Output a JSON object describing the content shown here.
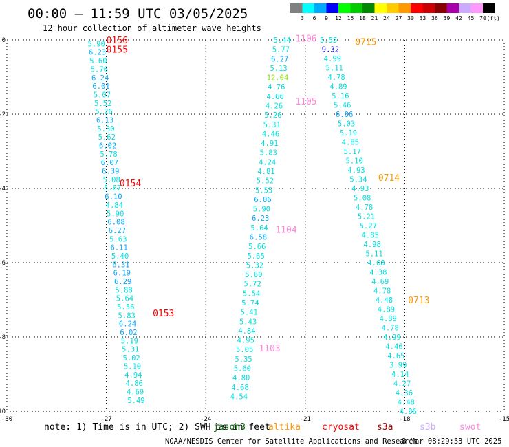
{
  "header": {
    "title": "00:00 — 11:59 UTC 03/05/2025",
    "subtitle": "12 hour collection of altimeter wave heights"
  },
  "legend": {
    "unit": "(ft)",
    "bins": [
      {
        "label": "3",
        "color": "#808080"
      },
      {
        "label": "6",
        "color": "#00ffff"
      },
      {
        "label": "9",
        "color": "#00aaff"
      },
      {
        "label": "12",
        "color": "#0000ff"
      },
      {
        "label": "15",
        "color": "#00ff00"
      },
      {
        "label": "18",
        "color": "#00cc00"
      },
      {
        "label": "21",
        "color": "#008800"
      },
      {
        "label": "24",
        "color": "#ffff00"
      },
      {
        "label": "27",
        "color": "#ffcc00"
      },
      {
        "label": "30",
        "color": "#ff9900"
      },
      {
        "label": "33",
        "color": "#ff0000"
      },
      {
        "label": "36",
        "color": "#cc0000"
      },
      {
        "label": "39",
        "color": "#880000"
      },
      {
        "label": "42",
        "color": "#aa00aa"
      },
      {
        "label": "45",
        "color": "#ccaaff"
      },
      {
        "label": "70",
        "color": "#ff99ff"
      },
      {
        "label": "",
        "color": "#000000"
      }
    ]
  },
  "footer": {
    "note": "note: 1) Time is in UTC; 2) SWH is in feet",
    "satellites": [
      {
        "name": "jason3",
        "color": "#006600"
      },
      {
        "name": "altika",
        "color": "#ff9900"
      },
      {
        "name": "cryosat",
        "color": "#ff0000"
      },
      {
        "name": "s3a",
        "color": "#aa0000"
      },
      {
        "name": "s3b",
        "color": "#ccaaff"
      },
      {
        "name": "swot",
        "color": "#ff88dd"
      }
    ],
    "credit": "NOAA/NESDIS Center for Satellite Applications and Research",
    "timestamp": "8 Mar 08:29:53 UTC 2025"
  },
  "chart_data": {
    "type": "scatter",
    "title": "00:00 — 11:59 UTC 03/05/2025",
    "subtitle": "12 hour collection of altimeter wave heights",
    "xlabel": "",
    "ylabel": "",
    "xlim": [
      -30,
      -15
    ],
    "ylim": [
      -10,
      0
    ],
    "xticks": [
      -30,
      -27,
      -24,
      -21,
      -18,
      -15
    ],
    "yticks": [
      0,
      -2,
      -4,
      -6,
      -8,
      -10
    ],
    "grid": true,
    "point_colors": {
      "cyan": "#00e0e0",
      "blue": "#00aaff",
      "navy": "#0000cc",
      "green": "#88dd00"
    },
    "passes": [
      {
        "lon_top": -27.3,
        "lon_bottom": -26.1,
        "lat_top": -0.1,
        "lat_bottom": -9.7,
        "values": [
          {
            "v": "5.90",
            "c": "cyan"
          },
          {
            "v": "6.23",
            "c": "blue"
          },
          {
            "v": "5.60",
            "c": "cyan"
          },
          {
            "v": "5.76",
            "c": "cyan"
          },
          {
            "v": "6.24",
            "c": "blue"
          },
          {
            "v": "6.01",
            "c": "blue"
          },
          {
            "v": "5.07",
            "c": "cyan"
          },
          {
            "v": "5.52",
            "c": "cyan"
          },
          {
            "v": "5.26",
            "c": "cyan"
          },
          {
            "v": "6.13",
            "c": "blue"
          },
          {
            "v": "5.30",
            "c": "cyan"
          },
          {
            "v": "5.62",
            "c": "cyan"
          },
          {
            "v": "6.02",
            "c": "blue"
          },
          {
            "v": "5.78",
            "c": "cyan"
          },
          {
            "v": "6.07",
            "c": "blue"
          },
          {
            "v": "6.39",
            "c": "blue"
          },
          {
            "v": "5.08",
            "c": "cyan"
          },
          {
            "v": "5.67",
            "c": "cyan"
          },
          {
            "v": "6.10",
            "c": "blue"
          },
          {
            "v": "4.84",
            "c": "cyan"
          },
          {
            "v": "5.90",
            "c": "cyan"
          },
          {
            "v": "6.08",
            "c": "blue"
          },
          {
            "v": "6.27",
            "c": "blue"
          },
          {
            "v": "5.63",
            "c": "cyan"
          },
          {
            "v": "6.11",
            "c": "blue"
          },
          {
            "v": "5.40",
            "c": "cyan"
          },
          {
            "v": "6.31",
            "c": "blue"
          },
          {
            "v": "6.19",
            "c": "blue"
          },
          {
            "v": "6.29",
            "c": "blue"
          },
          {
            "v": "5.88",
            "c": "cyan"
          },
          {
            "v": "5.64",
            "c": "cyan"
          },
          {
            "v": "5.56",
            "c": "cyan"
          },
          {
            "v": "5.83",
            "c": "cyan"
          },
          {
            "v": "6.24",
            "c": "blue"
          },
          {
            "v": "6.02",
            "c": "blue"
          },
          {
            "v": "5.19",
            "c": "cyan"
          },
          {
            "v": "5.31",
            "c": "cyan"
          },
          {
            "v": "5.02",
            "c": "cyan"
          },
          {
            "v": "5.10",
            "c": "cyan"
          },
          {
            "v": "4.94",
            "c": "cyan"
          },
          {
            "v": "4.86",
            "c": "cyan"
          },
          {
            "v": "4.69",
            "c": "cyan"
          },
          {
            "v": "5.49",
            "c": "cyan"
          }
        ]
      },
      {
        "lon_top": -21.7,
        "lon_bottom": -23.0,
        "lat_top": 0.0,
        "lat_bottom": -9.6,
        "values": [
          {
            "v": "5.44",
            "c": "cyan"
          },
          {
            "v": "5.77",
            "c": "cyan"
          },
          {
            "v": "6.27",
            "c": "blue"
          },
          {
            "v": "5.13",
            "c": "cyan"
          },
          {
            "v": "12.04",
            "c": "green"
          },
          {
            "v": "4.76",
            "c": "cyan"
          },
          {
            "v": "4.66",
            "c": "cyan"
          },
          {
            "v": "4.26",
            "c": "cyan"
          },
          {
            "v": "5.26",
            "c": "cyan"
          },
          {
            "v": "5.31",
            "c": "cyan"
          },
          {
            "v": "4.46",
            "c": "cyan"
          },
          {
            "v": "4.91",
            "c": "cyan"
          },
          {
            "v": "5.83",
            "c": "cyan"
          },
          {
            "v": "4.24",
            "c": "cyan"
          },
          {
            "v": "4.81",
            "c": "cyan"
          },
          {
            "v": "5.52",
            "c": "cyan"
          },
          {
            "v": "5.55",
            "c": "cyan"
          },
          {
            "v": "6.06",
            "c": "blue"
          },
          {
            "v": "5.90",
            "c": "cyan"
          },
          {
            "v": "6.23",
            "c": "blue"
          },
          {
            "v": "5.64",
            "c": "cyan"
          },
          {
            "v": "6.58",
            "c": "blue"
          },
          {
            "v": "5.66",
            "c": "cyan"
          },
          {
            "v": "5.65",
            "c": "cyan"
          },
          {
            "v": "5.32",
            "c": "cyan"
          },
          {
            "v": "5.60",
            "c": "cyan"
          },
          {
            "v": "5.72",
            "c": "cyan"
          },
          {
            "v": "5.54",
            "c": "cyan"
          },
          {
            "v": "5.74",
            "c": "cyan"
          },
          {
            "v": "5.41",
            "c": "cyan"
          },
          {
            "v": "5.43",
            "c": "cyan"
          },
          {
            "v": "4.84",
            "c": "cyan"
          },
          {
            "v": "4.95",
            "c": "cyan"
          },
          {
            "v": "5.05",
            "c": "cyan"
          },
          {
            "v": "5.35",
            "c": "cyan"
          },
          {
            "v": "5.60",
            "c": "cyan"
          },
          {
            "v": "4.80",
            "c": "cyan"
          },
          {
            "v": "4.68",
            "c": "cyan"
          },
          {
            "v": "4.54",
            "c": "cyan"
          }
        ]
      },
      {
        "lon_top": -20.3,
        "lon_bottom": -17.9,
        "lat_top": 0.0,
        "lat_bottom": -10.0,
        "values": [
          {
            "v": "5.55",
            "c": "cyan"
          },
          {
            "v": "9.32",
            "c": "navy"
          },
          {
            "v": "4.99",
            "c": "cyan"
          },
          {
            "v": "5.11",
            "c": "cyan"
          },
          {
            "v": "4.78",
            "c": "cyan"
          },
          {
            "v": "4.89",
            "c": "cyan"
          },
          {
            "v": "5.16",
            "c": "cyan"
          },
          {
            "v": "5.46",
            "c": "cyan"
          },
          {
            "v": "6.06",
            "c": "blue"
          },
          {
            "v": "5.03",
            "c": "cyan"
          },
          {
            "v": "5.19",
            "c": "cyan"
          },
          {
            "v": "4.85",
            "c": "cyan"
          },
          {
            "v": "5.17",
            "c": "cyan"
          },
          {
            "v": "5.10",
            "c": "cyan"
          },
          {
            "v": "4.93",
            "c": "cyan"
          },
          {
            "v": "5.34",
            "c": "cyan"
          },
          {
            "v": "4.93",
            "c": "cyan"
          },
          {
            "v": "5.08",
            "c": "cyan"
          },
          {
            "v": "4.78",
            "c": "cyan"
          },
          {
            "v": "5.21",
            "c": "cyan"
          },
          {
            "v": "5.27",
            "c": "cyan"
          },
          {
            "v": "4.85",
            "c": "cyan"
          },
          {
            "v": "4.98",
            "c": "cyan"
          },
          {
            "v": "5.11",
            "c": "cyan"
          },
          {
            "v": "4.68",
            "c": "cyan"
          },
          {
            "v": "4.38",
            "c": "cyan"
          },
          {
            "v": "4.69",
            "c": "cyan"
          },
          {
            "v": "4.78",
            "c": "cyan"
          },
          {
            "v": "4.48",
            "c": "cyan"
          },
          {
            "v": "4.89",
            "c": "cyan"
          },
          {
            "v": "4.89",
            "c": "cyan"
          },
          {
            "v": "4.78",
            "c": "cyan"
          },
          {
            "v": "4.99",
            "c": "cyan"
          },
          {
            "v": "4.46",
            "c": "cyan"
          },
          {
            "v": "4.65",
            "c": "cyan"
          },
          {
            "v": "3.99",
            "c": "cyan"
          },
          {
            "v": "4.14",
            "c": "cyan"
          },
          {
            "v": "4.27",
            "c": "cyan"
          },
          {
            "v": "4.36",
            "c": "cyan"
          },
          {
            "v": "4.48",
            "c": "cyan"
          },
          {
            "v": "4.86",
            "c": "cyan"
          }
        ]
      }
    ],
    "pass_labels": [
      {
        "text": "0156",
        "lon": -27.0,
        "lat": 0.0,
        "color": "#ff0000"
      },
      {
        "text": "0155",
        "lon": -27.0,
        "lat": -0.25,
        "color": "#ff0000"
      },
      {
        "text": "0154",
        "lon": -26.6,
        "lat": -3.85,
        "color": "#ff0000"
      },
      {
        "text": "0153",
        "lon": -25.6,
        "lat": -7.35,
        "color": "#ff0000"
      },
      {
        "text": "1106",
        "lon": -21.3,
        "lat": 0.05,
        "color": "#ff88dd"
      },
      {
        "text": "1105",
        "lon": -21.3,
        "lat": -1.65,
        "color": "#ff88dd"
      },
      {
        "text": "1104",
        "lon": -21.9,
        "lat": -5.1,
        "color": "#ff88dd"
      },
      {
        "text": "1103",
        "lon": -22.4,
        "lat": -8.3,
        "color": "#ff88dd"
      },
      {
        "text": "0715",
        "lon": -19.5,
        "lat": -0.05,
        "color": "#ff9900"
      },
      {
        "text": "0714",
        "lon": -18.8,
        "lat": -3.7,
        "color": "#ff9900"
      },
      {
        "text": "0713",
        "lon": -17.9,
        "lat": -7.0,
        "color": "#ff9900"
      }
    ]
  }
}
